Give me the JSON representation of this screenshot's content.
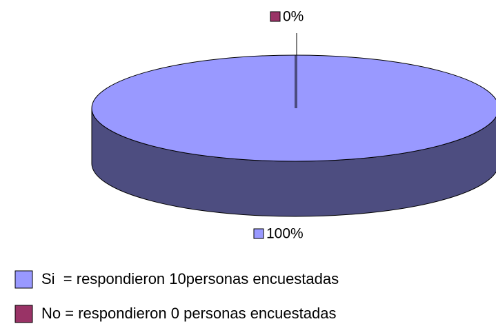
{
  "chart_data": {
    "type": "pie3d",
    "categories": [
      "Si  = respondieron 10personas encuestadas",
      "No = respondieron 0 personas encuestadas"
    ],
    "values": [
      100,
      0
    ],
    "value_labels": [
      "100%",
      "0%"
    ],
    "colors": [
      "#9999ff",
      "#993366"
    ]
  }
}
